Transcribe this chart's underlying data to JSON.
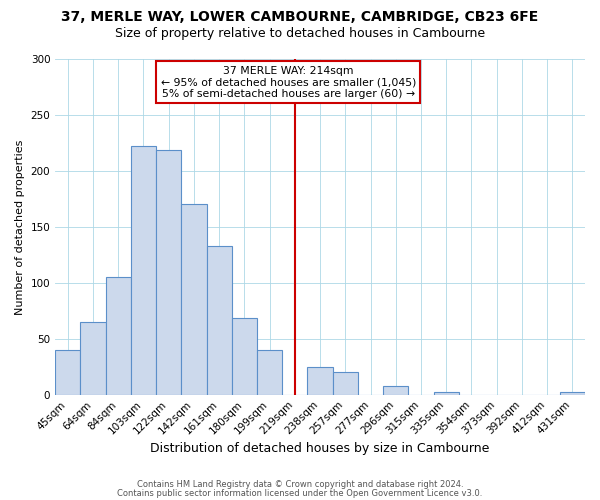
{
  "title1": "37, MERLE WAY, LOWER CAMBOURNE, CAMBRIDGE, CB23 6FE",
  "title2": "Size of property relative to detached houses in Cambourne",
  "xlabel": "Distribution of detached houses by size in Cambourne",
  "ylabel": "Number of detached properties",
  "footer1": "Contains HM Land Registry data © Crown copyright and database right 2024.",
  "footer2": "Contains public sector information licensed under the Open Government Licence v3.0.",
  "bar_labels": [
    "45sqm",
    "64sqm",
    "84sqm",
    "103sqm",
    "122sqm",
    "142sqm",
    "161sqm",
    "180sqm",
    "199sqm",
    "219sqm",
    "238sqm",
    "257sqm",
    "277sqm",
    "296sqm",
    "315sqm",
    "335sqm",
    "354sqm",
    "373sqm",
    "392sqm",
    "412sqm",
    "431sqm"
  ],
  "bar_values": [
    40,
    65,
    105,
    222,
    219,
    170,
    133,
    69,
    40,
    0,
    25,
    20,
    0,
    8,
    0,
    2,
    0,
    0,
    0,
    0,
    2
  ],
  "bar_color": "#ccd9ec",
  "bar_edge_color": "#5b8fc9",
  "vline_x_idx": 9,
  "vline_color": "#cc0000",
  "annotation_title": "37 MERLE WAY: 214sqm",
  "annotation_line1": "← 95% of detached houses are smaller (1,045)",
  "annotation_line2": "5% of semi-detached houses are larger (60) →",
  "annotation_box_color": "#cc0000",
  "ylim": [
    0,
    300
  ],
  "yticks": [
    0,
    50,
    100,
    150,
    200,
    250,
    300
  ],
  "title1_fontsize": 10,
  "title2_fontsize": 9,
  "ylabel_fontsize": 8,
  "xlabel_fontsize": 9
}
